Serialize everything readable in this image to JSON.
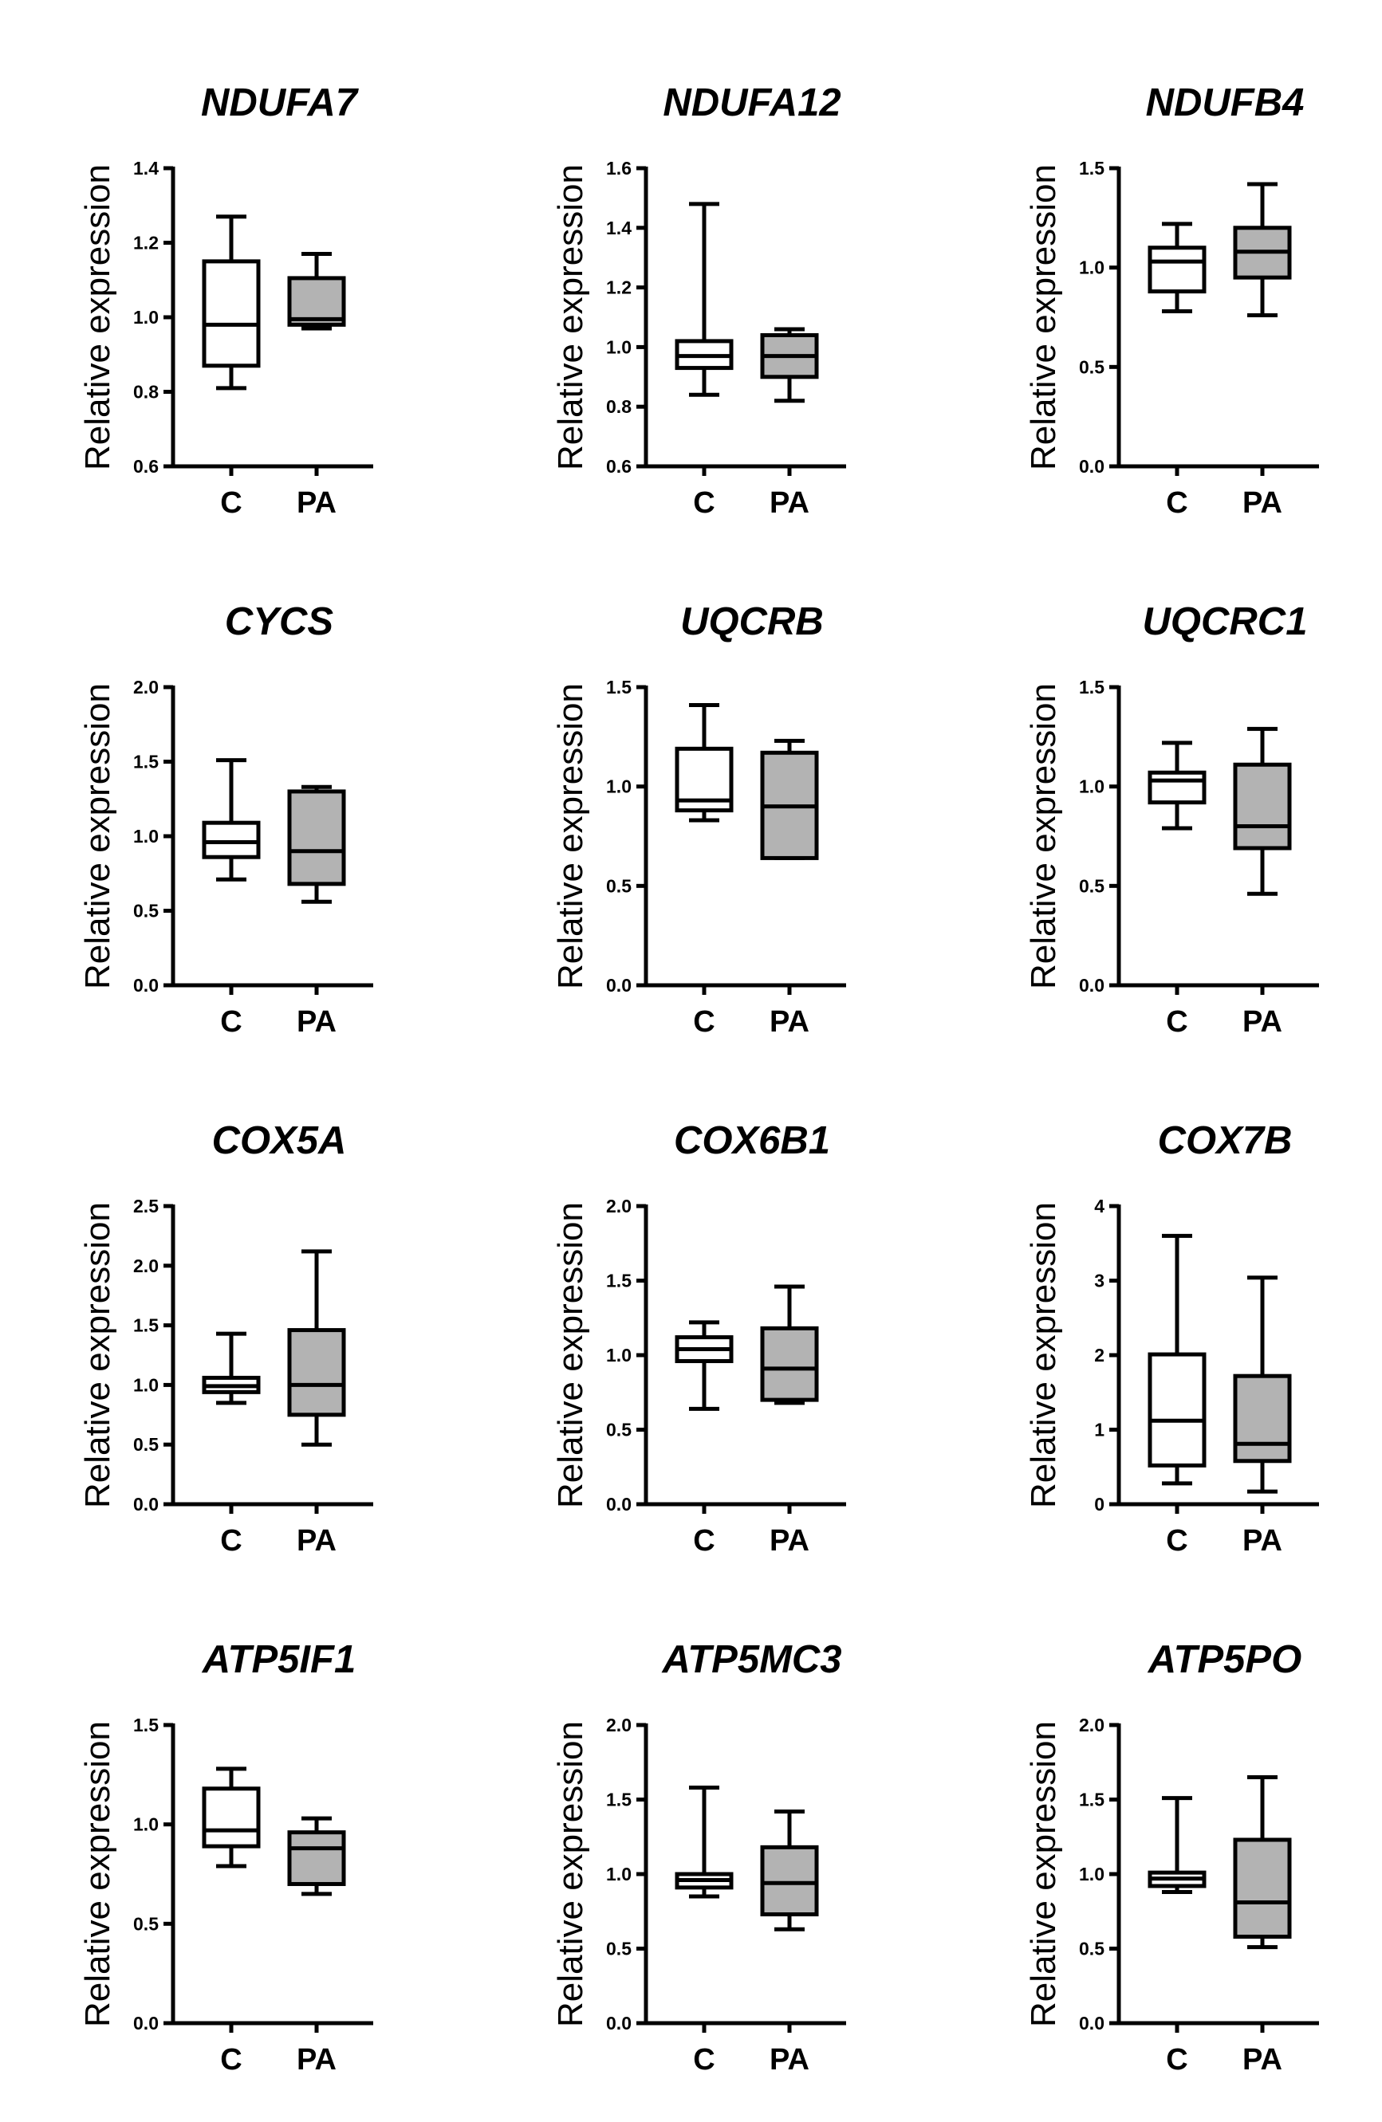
{
  "chart_data": [
    {
      "type": "box",
      "title": "NDUFA7",
      "ylabel": "Relative expression",
      "categories": [
        "C",
        "PA"
      ],
      "ylim": [
        0.6,
        1.4
      ],
      "yticks": [
        "0.6",
        "0.8",
        "1.0",
        "1.2",
        "1.4"
      ],
      "boxes": [
        {
          "name": "C",
          "min": 0.81,
          "q1": 0.87,
          "median": 0.98,
          "q3": 1.15,
          "max": 1.27,
          "fill": "#ffffff"
        },
        {
          "name": "PA",
          "min": 0.97,
          "q1": 0.98,
          "median": 0.995,
          "q3": 1.105,
          "max": 1.17,
          "fill": "#b3b3b3"
        }
      ]
    },
    {
      "type": "box",
      "title": "NDUFA12",
      "ylabel": "Relative expression",
      "categories": [
        "C",
        "PA"
      ],
      "ylim": [
        0.6,
        1.6
      ],
      "yticks": [
        "0.6",
        "0.8",
        "1.0",
        "1.2",
        "1.4",
        "1.6"
      ],
      "boxes": [
        {
          "name": "C",
          "min": 0.84,
          "q1": 0.93,
          "median": 0.97,
          "q3": 1.02,
          "max": 1.48,
          "fill": "#ffffff"
        },
        {
          "name": "PA",
          "min": 0.82,
          "q1": 0.9,
          "median": 0.97,
          "q3": 1.04,
          "max": 1.06,
          "fill": "#b3b3b3"
        }
      ]
    },
    {
      "type": "box",
      "title": "NDUFB4",
      "ylabel": "Relative expression",
      "categories": [
        "C",
        "PA"
      ],
      "ylim": [
        0.0,
        1.5
      ],
      "yticks": [
        "0.0",
        "0.5",
        "1.0",
        "1.5"
      ],
      "boxes": [
        {
          "name": "C",
          "min": 0.78,
          "q1": 0.88,
          "median": 1.03,
          "q3": 1.1,
          "max": 1.22,
          "fill": "#ffffff"
        },
        {
          "name": "PA",
          "min": 0.76,
          "q1": 0.95,
          "median": 1.08,
          "q3": 1.2,
          "max": 1.42,
          "fill": "#b3b3b3"
        }
      ]
    },
    {
      "type": "box",
      "title": "CYCS",
      "ylabel": "Relative expression",
      "categories": [
        "C",
        "PA"
      ],
      "ylim": [
        0.0,
        2.0
      ],
      "yticks": [
        "0.0",
        "0.5",
        "1.0",
        "1.5",
        "2.0"
      ],
      "boxes": [
        {
          "name": "C",
          "min": 0.71,
          "q1": 0.86,
          "median": 0.96,
          "q3": 1.09,
          "max": 1.51,
          "fill": "#ffffff"
        },
        {
          "name": "PA",
          "min": 0.56,
          "q1": 0.68,
          "median": 0.9,
          "q3": 1.3,
          "max": 1.33,
          "fill": "#b3b3b3"
        }
      ]
    },
    {
      "type": "box",
      "title": "UQCRB",
      "ylabel": "Relative expression",
      "categories": [
        "C",
        "PA"
      ],
      "ylim": [
        0.0,
        1.5
      ],
      "yticks": [
        "0.0",
        "0.5",
        "1.0",
        "1.5"
      ],
      "boxes": [
        {
          "name": "C",
          "min": 0.83,
          "q1": 0.88,
          "median": 0.93,
          "q3": 1.19,
          "max": 1.41,
          "fill": "#ffffff"
        },
        {
          "name": "PA",
          "min": 0.64,
          "q1": 0.64,
          "median": 0.9,
          "q3": 1.17,
          "max": 1.23,
          "fill": "#b3b3b3"
        }
      ]
    },
    {
      "type": "box",
      "title": "UQCRC1",
      "ylabel": "Relative expression",
      "categories": [
        "C",
        "PA"
      ],
      "ylim": [
        0.0,
        1.5
      ],
      "yticks": [
        "0.0",
        "0.5",
        "1.0",
        "1.5"
      ],
      "boxes": [
        {
          "name": "C",
          "min": 0.79,
          "q1": 0.92,
          "median": 1.03,
          "q3": 1.07,
          "max": 1.22,
          "fill": "#ffffff"
        },
        {
          "name": "PA",
          "min": 0.46,
          "q1": 0.69,
          "median": 0.8,
          "q3": 1.11,
          "max": 1.29,
          "fill": "#b3b3b3"
        }
      ]
    },
    {
      "type": "box",
      "title": "COX5A",
      "ylabel": "Relative expression",
      "categories": [
        "C",
        "PA"
      ],
      "ylim": [
        0.0,
        2.5
      ],
      "yticks": [
        "0.0",
        "0.5",
        "1.0",
        "1.5",
        "2.0",
        "2.5"
      ],
      "boxes": [
        {
          "name": "C",
          "min": 0.85,
          "q1": 0.94,
          "median": 0.99,
          "q3": 1.06,
          "max": 1.43,
          "fill": "#ffffff"
        },
        {
          "name": "PA",
          "min": 0.5,
          "q1": 0.75,
          "median": 1.0,
          "q3": 1.46,
          "max": 2.12,
          "fill": "#b3b3b3"
        }
      ]
    },
    {
      "type": "box",
      "title": "COX6B1",
      "ylabel": "Relative expression",
      "categories": [
        "C",
        "PA"
      ],
      "ylim": [
        0.0,
        2.0
      ],
      "yticks": [
        "0.0",
        "0.5",
        "1.0",
        "1.5",
        "2.0"
      ],
      "boxes": [
        {
          "name": "C",
          "min": 0.64,
          "q1": 0.96,
          "median": 1.04,
          "q3": 1.12,
          "max": 1.22,
          "fill": "#ffffff"
        },
        {
          "name": "PA",
          "min": 0.68,
          "q1": 0.7,
          "median": 0.91,
          "q3": 1.18,
          "max": 1.46,
          "fill": "#b3b3b3"
        }
      ]
    },
    {
      "type": "box",
      "title": "COX7B",
      "ylabel": "Relative expression",
      "categories": [
        "C",
        "PA"
      ],
      "ylim": [
        0,
        4
      ],
      "yticks": [
        "0",
        "1",
        "2",
        "3",
        "4"
      ],
      "boxes": [
        {
          "name": "C",
          "min": 0.28,
          "q1": 0.52,
          "median": 1.12,
          "q3": 2.01,
          "max": 3.6,
          "fill": "#ffffff"
        },
        {
          "name": "PA",
          "min": 0.17,
          "q1": 0.58,
          "median": 0.81,
          "q3": 1.72,
          "max": 3.04,
          "fill": "#b3b3b3"
        }
      ]
    },
    {
      "type": "box",
      "title": "ATP5IF1",
      "ylabel": "Relative expression",
      "categories": [
        "C",
        "PA"
      ],
      "ylim": [
        0.0,
        1.5
      ],
      "yticks": [
        "0.0",
        "0.5",
        "1.0",
        "1.5"
      ],
      "boxes": [
        {
          "name": "C",
          "min": 0.79,
          "q1": 0.89,
          "median": 0.97,
          "q3": 1.18,
          "max": 1.28,
          "fill": "#ffffff"
        },
        {
          "name": "PA",
          "min": 0.65,
          "q1": 0.7,
          "median": 0.88,
          "q3": 0.96,
          "max": 1.03,
          "fill": "#b3b3b3"
        }
      ]
    },
    {
      "type": "box",
      "title": "ATP5MC3",
      "ylabel": "Relative expression",
      "categories": [
        "C",
        "PA"
      ],
      "ylim": [
        0.0,
        2.0
      ],
      "yticks": [
        "0.0",
        "0.5",
        "1.0",
        "1.5",
        "2.0"
      ],
      "boxes": [
        {
          "name": "C",
          "min": 0.85,
          "q1": 0.91,
          "median": 0.96,
          "q3": 1.0,
          "max": 1.58,
          "fill": "#ffffff"
        },
        {
          "name": "PA",
          "min": 0.63,
          "q1": 0.73,
          "median": 0.94,
          "q3": 1.18,
          "max": 1.42,
          "fill": "#b3b3b3"
        }
      ]
    },
    {
      "type": "box",
      "title": "ATP5PO",
      "ylabel": "Relative expression",
      "categories": [
        "C",
        "PA"
      ],
      "ylim": [
        0.0,
        2.0
      ],
      "yticks": [
        "0.0",
        "0.5",
        "1.0",
        "1.5",
        "2.0"
      ],
      "boxes": [
        {
          "name": "C",
          "min": 0.88,
          "q1": 0.92,
          "median": 0.97,
          "q3": 1.01,
          "max": 1.51,
          "fill": "#ffffff"
        },
        {
          "name": "PA",
          "min": 0.51,
          "q1": 0.58,
          "median": 0.81,
          "q3": 1.23,
          "max": 1.65,
          "fill": "#b3b3b3"
        }
      ]
    }
  ]
}
